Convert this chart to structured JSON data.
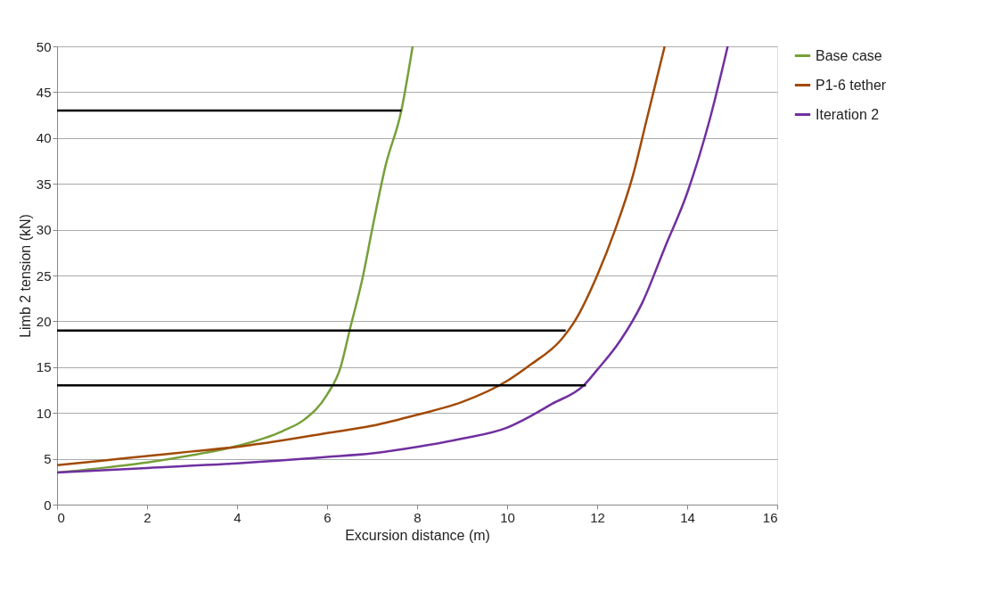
{
  "chart_data": {
    "type": "line",
    "xlabel": "Excursion distance (m)",
    "ylabel": "Limb 2 tension (kN)",
    "xlim": [
      0,
      16
    ],
    "xticks": [
      0,
      2,
      4,
      6,
      8,
      10,
      12,
      14,
      16
    ],
    "ylim": [
      0,
      50
    ],
    "yticks": [
      0,
      5,
      10,
      15,
      20,
      25,
      30,
      35,
      40,
      45,
      50
    ],
    "grid": "y",
    "legend": "right",
    "marker": "none",
    "line_style": "solid",
    "series": [
      {
        "name": "Base case",
        "color": "#77a03a",
        "x": [
          0,
          1,
          2,
          3,
          4,
          5,
          5.5,
          6,
          6.3,
          6.5,
          6.8,
          7,
          7.3,
          7.65,
          7.9
        ],
        "values": [
          3.5,
          4,
          4.6,
          5.4,
          6.4,
          8,
          9.3,
          12,
          15,
          19,
          25,
          30,
          37,
          43,
          50
        ]
      },
      {
        "name": "P1-6 tether",
        "color": "#a24a05",
        "x": [
          0,
          1,
          2,
          3,
          4,
          5,
          6,
          7,
          8,
          9,
          10,
          10.5,
          11.2,
          11.5,
          12,
          12.4,
          12.8,
          13.1,
          13.5
        ],
        "values": [
          4.3,
          4.8,
          5.3,
          5.8,
          6.3,
          7,
          7.8,
          8.6,
          9.8,
          11.2,
          13.5,
          15.2,
          18,
          20,
          25,
          30,
          36,
          42,
          50
        ]
      },
      {
        "name": "Iteration 2",
        "color": "#7030a0",
        "x": [
          0,
          2,
          4,
          6,
          7,
          8,
          9,
          10,
          10.5,
          11,
          11.7,
          12,
          12.5,
          13,
          13.5,
          14,
          14.5,
          14.9
        ],
        "values": [
          3.5,
          4,
          4.5,
          5.2,
          5.6,
          6.3,
          7.2,
          8.4,
          9.6,
          11,
          13,
          14.7,
          17.8,
          22,
          28,
          34,
          42,
          50
        ]
      },
      {
        "color": "#000000",
        "x": [
          0,
          7.65
        ],
        "values": [
          43,
          43
        ]
      },
      {
        "color": "#000000",
        "x": [
          0,
          11.3
        ],
        "values": [
          19,
          19
        ]
      },
      {
        "color": "#000000",
        "x": [
          0,
          11.75
        ],
        "values": [
          13,
          13
        ]
      }
    ]
  }
}
